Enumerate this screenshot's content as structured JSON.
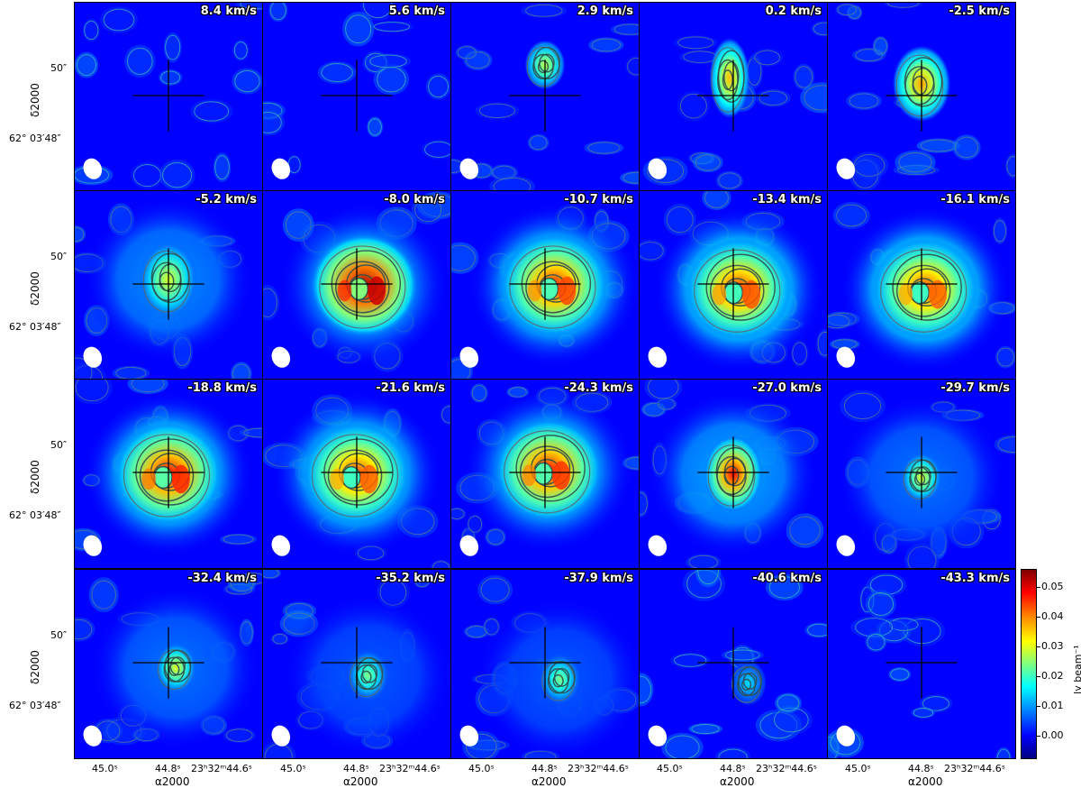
{
  "figure": {
    "panels": [
      {
        "velocity": "8.4 km/s",
        "peak": 0.006,
        "clump": null,
        "halo": 0.0,
        "cx": 0.5,
        "cy": 0.4
      },
      {
        "velocity": "5.6 km/s",
        "peak": 0.006,
        "clump": null,
        "halo": 0.0,
        "cx": 0.5,
        "cy": 0.4
      },
      {
        "velocity": "2.9 km/s",
        "peak": 0.028,
        "clump": "small",
        "halo": 0.0,
        "cx": 0.5,
        "cy": 0.33
      },
      {
        "velocity": "0.2 km/s",
        "peak": 0.036,
        "clump": "elong",
        "halo": 0.0,
        "cx": 0.48,
        "cy": 0.4
      },
      {
        "velocity": "-2.5 km/s",
        "peak": 0.038,
        "clump": "oval",
        "halo": 0.0,
        "cx": 0.5,
        "cy": 0.43
      },
      {
        "velocity": "-5.2 km/s",
        "peak": 0.03,
        "clump": "oval",
        "halo": 0.01,
        "cx": 0.5,
        "cy": 0.47
      },
      {
        "velocity": "-8.0 km/s",
        "peak": 0.054,
        "clump": "ring",
        "halo": 0.012,
        "cx": 0.54,
        "cy": 0.5
      },
      {
        "velocity": "-10.7 km/s",
        "peak": 0.046,
        "clump": "ring",
        "halo": 0.016,
        "cx": 0.55,
        "cy": 0.5
      },
      {
        "velocity": "-13.4 km/s",
        "peak": 0.045,
        "clump": "ring",
        "halo": 0.018,
        "cx": 0.53,
        "cy": 0.52
      },
      {
        "velocity": "-16.1 km/s",
        "peak": 0.044,
        "clump": "ring",
        "halo": 0.018,
        "cx": 0.52,
        "cy": 0.52
      },
      {
        "velocity": "-18.8 km/s",
        "peak": 0.048,
        "clump": "ring",
        "halo": 0.016,
        "cx": 0.5,
        "cy": 0.5
      },
      {
        "velocity": "-21.6 km/s",
        "peak": 0.044,
        "clump": "ring",
        "halo": 0.016,
        "cx": 0.5,
        "cy": 0.5
      },
      {
        "velocity": "-24.3 km/s",
        "peak": 0.047,
        "clump": "ring",
        "halo": 0.014,
        "cx": 0.52,
        "cy": 0.48
      },
      {
        "velocity": "-27.0 km/s",
        "peak": 0.048,
        "clump": "oval",
        "halo": 0.012,
        "cx": 0.5,
        "cy": 0.5
      },
      {
        "velocity": "-29.7 km/s",
        "peak": 0.03,
        "clump": "small",
        "halo": 0.008,
        "cx": 0.5,
        "cy": 0.52
      },
      {
        "velocity": "-32.4 km/s",
        "peak": 0.03,
        "clump": "small",
        "halo": 0.008,
        "cx": 0.54,
        "cy": 0.52
      },
      {
        "velocity": "-35.2 km/s",
        "peak": 0.024,
        "clump": "small",
        "halo": 0.006,
        "cx": 0.56,
        "cy": 0.56
      },
      {
        "velocity": "-37.9 km/s",
        "peak": 0.024,
        "clump": "small",
        "halo": 0.006,
        "cx": 0.58,
        "cy": 0.58
      },
      {
        "velocity": "-40.6 km/s",
        "peak": 0.014,
        "clump": "faint",
        "halo": 0.0,
        "cx": 0.58,
        "cy": 0.6
      },
      {
        "velocity": "-43.3 km/s",
        "peak": 0.008,
        "clump": null,
        "halo": 0.0,
        "cx": 0.5,
        "cy": 0.5
      }
    ],
    "y_axis": {
      "tick_top": "50″",
      "tick_bottom": "62° 03′48″",
      "label": "δ2000"
    },
    "x_axis": {
      "tick_1": "45.0ˢ",
      "tick_2": "44.8ˢ",
      "tick_3": "23ʰ32ᵐ44.6ˢ",
      "label": "α2000"
    },
    "colorbar": {
      "label": "Jy beam⁻¹",
      "ticks": [
        "0.05",
        "0.04",
        "0.03",
        "0.02",
        "0.01",
        "0.00"
      ]
    }
  }
}
